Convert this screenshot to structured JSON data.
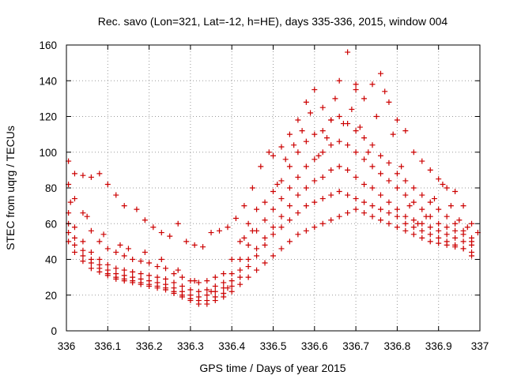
{
  "chart_data": {
    "type": "scatter",
    "title": "Rec. savo (Lon=321, Lat=-12, h=HE), days 335-336, 2015, window 004",
    "xlabel": "GPS time / Days of year 2015",
    "ylabel": "STEC from uqrg / TECUs",
    "xlim": [
      336,
      337
    ],
    "ylim": [
      0,
      160
    ],
    "xticks": [
      336,
      336.1,
      336.2,
      336.3,
      336.4,
      336.5,
      336.6,
      336.7,
      336.8,
      336.9,
      337
    ],
    "xtick_labels": [
      "336",
      "336.1",
      "336.2",
      "336.3",
      "336.4",
      "336.5",
      "336.6",
      "336.7",
      "336.8",
      "336.9",
      "337"
    ],
    "yticks": [
      0,
      20,
      40,
      60,
      80,
      100,
      120,
      140,
      160
    ],
    "ytick_labels": [
      "0",
      "20",
      "40",
      "60",
      "80",
      "100",
      "120",
      "140",
      "160"
    ],
    "grid": true,
    "marker": "+",
    "color": "#cc0000",
    "series": [
      {
        "x": [
          336.005,
          336.02,
          336.04,
          336.06,
          336.08,
          336.1,
          336.12,
          336.14,
          336.17,
          336.19,
          336.21,
          336.23,
          336.25,
          336.27,
          336.29,
          336.31,
          336.33,
          336.35,
          336.37,
          336.39,
          336.41,
          336.43,
          336.45,
          336.47,
          336.5,
          336.52,
          336.54,
          336.56,
          336.58,
          336.6,
          336.62,
          336.64,
          336.66,
          336.68,
          336.7
        ],
        "y": [
          95,
          88,
          87,
          86,
          88,
          82,
          76,
          70,
          68,
          62,
          58,
          55,
          53,
          60,
          50,
          48,
          47,
          55,
          56,
          58,
          63,
          70,
          80,
          92,
          98,
          103,
          110,
          118,
          128,
          135,
          125,
          118,
          140,
          156,
          135
        ]
      },
      {
        "x": [
          336.7,
          336.72,
          336.74,
          336.76,
          336.78,
          336.8,
          336.82,
          336.84,
          336.86,
          336.88,
          336.9,
          336.92,
          336.94,
          336.96,
          336.98,
          336.995
        ],
        "y": [
          138,
          130,
          138,
          144,
          128,
          118,
          112,
          100,
          95,
          90,
          85,
          80,
          78,
          70,
          60,
          55
        ]
      },
      {
        "x": [
          336.005,
          336.02,
          336.04,
          336.06,
          336.08,
          336.1,
          336.12,
          336.14,
          336.16,
          336.18,
          336.2,
          336.22,
          336.24,
          336.26,
          336.28,
          336.3,
          336.32,
          336.34,
          336.36,
          336.38,
          336.4,
          336.42,
          336.44,
          336.46,
          336.48,
          336.5,
          336.52,
          336.54,
          336.56,
          336.58,
          336.6,
          336.62,
          336.64,
          336.66,
          336.68,
          336.7,
          336.72,
          336.74,
          336.76,
          336.78,
          336.8,
          336.82,
          336.84,
          336.86,
          336.88,
          336.9,
          336.92,
          336.94,
          336.96,
          336.98
        ],
        "y": [
          82,
          74,
          66,
          56,
          50,
          46,
          44,
          42,
          40,
          39,
          38,
          36,
          35,
          32,
          30,
          28,
          27,
          28,
          30,
          32,
          40,
          50,
          60,
          68,
          72,
          78,
          84,
          92,
          100,
          106,
          110,
          112,
          118,
          120,
          116,
          112,
          108,
          104,
          98,
          94,
          88,
          84,
          80,
          76,
          72,
          68,
          64,
          60,
          56,
          52
        ]
      },
      {
        "x": [
          336.005,
          336.02,
          336.04,
          336.06,
          336.08,
          336.1,
          336.12,
          336.14,
          336.16,
          336.18,
          336.2,
          336.22,
          336.24,
          336.26,
          336.28,
          336.3,
          336.32,
          336.34,
          336.36,
          336.38,
          336.4,
          336.42,
          336.44,
          336.46,
          336.48,
          336.5,
          336.52,
          336.54,
          336.56,
          336.58,
          336.6,
          336.62,
          336.64,
          336.66,
          336.68,
          336.7,
          336.72,
          336.74,
          336.76,
          336.78,
          336.8,
          336.82,
          336.84,
          336.86,
          336.88,
          336.9,
          336.92,
          336.94,
          336.96,
          336.98
        ],
        "y": [
          66,
          58,
          50,
          44,
          40,
          37,
          35,
          34,
          33,
          32,
          31,
          30,
          29,
          27,
          25,
          23,
          22,
          23,
          25,
          27,
          32,
          40,
          48,
          56,
          62,
          68,
          74,
          80,
          86,
          92,
          96,
          100,
          104,
          106,
          104,
          100,
          96,
          92,
          88,
          84,
          80,
          76,
          72,
          68,
          64,
          60,
          58,
          56,
          54,
          50
        ]
      },
      {
        "x": [
          336.005,
          336.02,
          336.04,
          336.06,
          336.08,
          336.1,
          336.12,
          336.14,
          336.16,
          336.18,
          336.2,
          336.22,
          336.24,
          336.26,
          336.28,
          336.3,
          336.32,
          336.34,
          336.36,
          336.38,
          336.4,
          336.42,
          336.44,
          336.46,
          336.48,
          336.5,
          336.52,
          336.54,
          336.56,
          336.58,
          336.6,
          336.62,
          336.64,
          336.66,
          336.68,
          336.7,
          336.72,
          336.74,
          336.76,
          336.78,
          336.8,
          336.82,
          336.84,
          336.86,
          336.88,
          336.9,
          336.92,
          336.94,
          336.96,
          336.98
        ],
        "y": [
          60,
          52,
          45,
          40,
          37,
          34,
          32,
          31,
          30,
          29,
          28,
          27,
          26,
          24,
          22,
          20,
          19,
          20,
          22,
          24,
          28,
          34,
          40,
          46,
          52,
          58,
          64,
          70,
          76,
          80,
          84,
          86,
          90,
          92,
          90,
          86,
          82,
          80,
          76,
          72,
          68,
          64,
          62,
          60,
          58,
          56,
          54,
          52,
          50,
          48
        ]
      },
      {
        "x": [
          336.005,
          336.02,
          336.04,
          336.06,
          336.08,
          336.1,
          336.12,
          336.14,
          336.16,
          336.18,
          336.2,
          336.22,
          336.24,
          336.26,
          336.28,
          336.3,
          336.32,
          336.34,
          336.36,
          336.38,
          336.4,
          336.42,
          336.44,
          336.46,
          336.48,
          336.5,
          336.52,
          336.54,
          336.56,
          336.58,
          336.6,
          336.62,
          336.64,
          336.66,
          336.68,
          336.7,
          336.72,
          336.74,
          336.76,
          336.78,
          336.8,
          336.82,
          336.84,
          336.86,
          336.88,
          336.9,
          336.92,
          336.94,
          336.96,
          336.98
        ],
        "y": [
          55,
          48,
          42,
          38,
          35,
          32,
          30,
          29,
          28,
          27,
          26,
          25,
          24,
          22,
          20,
          18,
          17,
          17,
          19,
          21,
          25,
          30,
          36,
          42,
          48,
          54,
          58,
          62,
          66,
          70,
          72,
          74,
          76,
          78,
          76,
          74,
          72,
          70,
          68,
          66,
          64,
          60,
          58,
          56,
          54,
          52,
          50,
          48,
          46,
          44
        ]
      },
      {
        "x": [
          336.005,
          336.02,
          336.04,
          336.06,
          336.08,
          336.1,
          336.12,
          336.14,
          336.16,
          336.18,
          336.2,
          336.22,
          336.24,
          336.26,
          336.28,
          336.3,
          336.32,
          336.34,
          336.36,
          336.38,
          336.4,
          336.42,
          336.44,
          336.46,
          336.48,
          336.5,
          336.52,
          336.54,
          336.56,
          336.58,
          336.6,
          336.62,
          336.64,
          336.66,
          336.68,
          336.7,
          336.72,
          336.74,
          336.76,
          336.78,
          336.8,
          336.82,
          336.84,
          336.86,
          336.88,
          336.9,
          336.92,
          336.94,
          336.96,
          336.98
        ],
        "y": [
          50,
          44,
          39,
          35,
          33,
          31,
          29,
          28,
          27,
          26,
          25,
          24,
          23,
          21,
          19,
          17,
          15,
          15,
          17,
          19,
          22,
          26,
          30,
          34,
          38,
          42,
          46,
          50,
          54,
          56,
          58,
          60,
          62,
          64,
          66,
          68,
          66,
          64,
          62,
          60,
          58,
          56,
          54,
          52,
          50,
          49,
          48,
          47,
          46,
          42
        ]
      },
      {
        "x": [
          336.01,
          336.05,
          336.09,
          336.13,
          336.15,
          336.19,
          336.23,
          336.27,
          336.31,
          336.35,
          336.39,
          336.43,
          336.45,
          336.49,
          336.51,
          336.53,
          336.55,
          336.57,
          336.59,
          336.61,
          336.63,
          336.65,
          336.67,
          336.69,
          336.71,
          336.73,
          336.75,
          336.77,
          336.79,
          336.81,
          336.83,
          336.85,
          336.87,
          336.89,
          336.91,
          336.93,
          336.95,
          336.97
        ],
        "y": [
          72,
          64,
          54,
          48,
          46,
          44,
          40,
          34,
          28,
          22,
          24,
          52,
          56,
          100,
          82,
          96,
          104,
          112,
          122,
          98,
          108,
          130,
          116,
          124,
          114,
          100,
          120,
          134,
          110,
          92,
          70,
          60,
          64,
          74,
          82,
          70,
          62,
          58
        ]
      }
    ]
  }
}
